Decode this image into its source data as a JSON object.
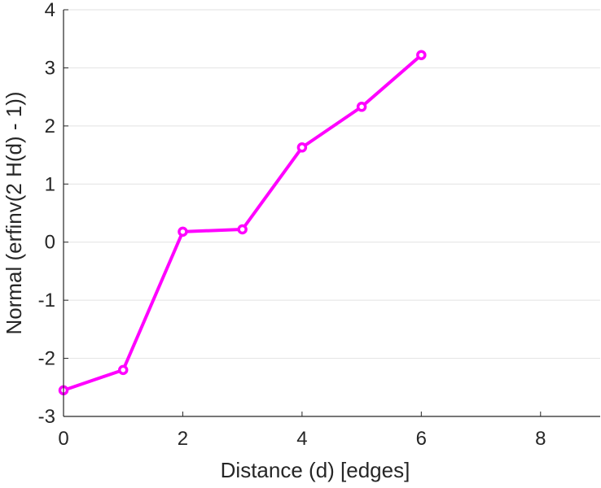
{
  "chart_data": {
    "type": "line",
    "title": "",
    "xlabel": "Distance (d) [edges]",
    "ylabel": "Normal (erfinv(2 H(d) - 1))",
    "xlim": [
      0,
      9
    ],
    "ylim": [
      -3,
      4
    ],
    "xticks": [
      0,
      2,
      4,
      6,
      8
    ],
    "yticks": [
      -3,
      -2,
      -1,
      0,
      1,
      2,
      3,
      4
    ],
    "grid": "horizontal",
    "legend": "none",
    "series": [
      {
        "color": "#ff00ff",
        "marker": "circle",
        "x": [
          0,
          1,
          2,
          3,
          4,
          5,
          6
        ],
        "y": [
          -2.55,
          -2.2,
          0.18,
          0.22,
          1.63,
          2.33,
          3.22
        ]
      }
    ]
  }
}
